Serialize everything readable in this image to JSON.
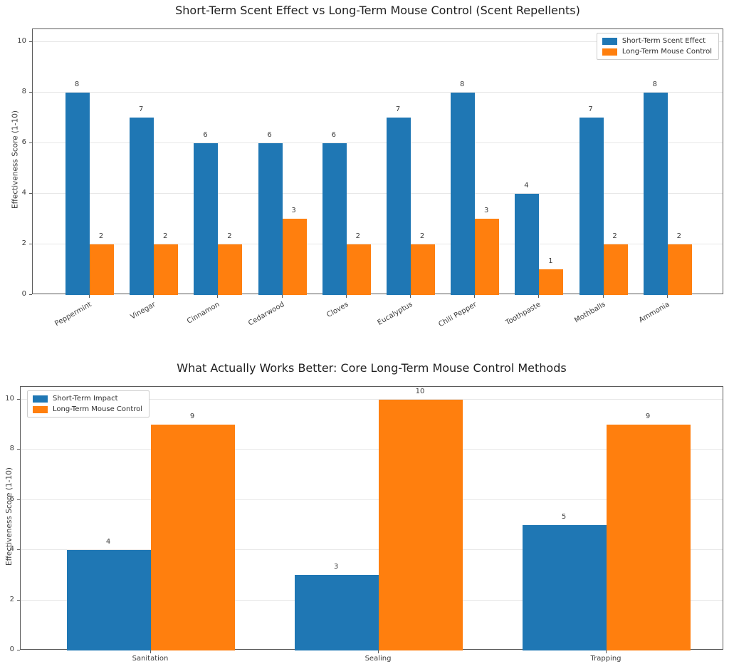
{
  "chart_data": [
    {
      "type": "bar",
      "title": "Short-Term Scent Effect vs Long-Term Mouse Control (Scent Repellents)",
      "xlabel": "",
      "ylabel": "Effectiveness Score (1-10)",
      "categories": [
        "Peppermint",
        "Vinegar",
        "Cinnamon",
        "Cedarwood",
        "Cloves",
        "Eucalyptus",
        "Chili Pepper",
        "Toothpaste",
        "Mothballs",
        "Ammonia"
      ],
      "series": [
        {
          "name": "Short-Term Scent Effect",
          "color": "#1f77b4",
          "values": [
            8,
            7,
            6,
            6,
            6,
            7,
            8,
            4,
            7,
            8
          ]
        },
        {
          "name": "Long-Term Mouse Control",
          "color": "#ff7f0e",
          "values": [
            2,
            2,
            2,
            3,
            2,
            2,
            3,
            1,
            2,
            2
          ]
        }
      ],
      "ylim": [
        0,
        10.5
      ],
      "yticks": [
        0,
        2,
        4,
        6,
        8,
        10
      ],
      "grid": true,
      "legend_position": "top-right",
      "xtick_rotation": 30,
      "value_labels": true
    },
    {
      "type": "bar",
      "title": "What Actually Works Better: Core Long-Term Mouse Control Methods",
      "xlabel": "",
      "ylabel": "Effectiveness Score (1-10)",
      "categories": [
        "Sanitation",
        "Sealing",
        "Trapping"
      ],
      "series": [
        {
          "name": "Short-Term Impact",
          "color": "#1f77b4",
          "values": [
            4,
            3,
            5
          ]
        },
        {
          "name": "Long-Term Mouse Control",
          "color": "#ff7f0e",
          "values": [
            9,
            10,
            9
          ]
        }
      ],
      "ylim": [
        0,
        10.5
      ],
      "yticks": [
        0,
        2,
        4,
        6,
        8,
        10
      ],
      "grid": true,
      "legend_position": "top-left",
      "xtick_rotation": 0,
      "value_labels": true
    }
  ]
}
